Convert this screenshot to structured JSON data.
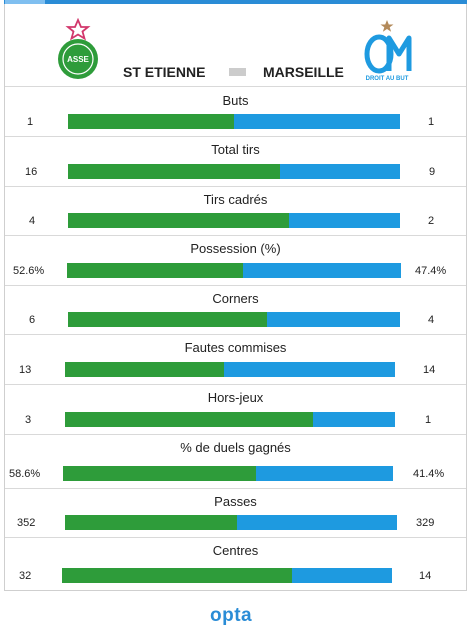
{
  "header": {
    "home_team": "ST ETIENNE",
    "away_team": "MARSEILLE",
    "home_logo_text": "SAINT-ETIENNE ASSE LOIRE",
    "away_logo_text": "DROIT AU BUT"
  },
  "colors": {
    "home": "#2e9c3a",
    "away": "#1e9ae0",
    "accent": "#2a8cd6"
  },
  "stats": [
    {
      "label": "Buts",
      "home": "1",
      "away": "1",
      "home_share": 0.5
    },
    {
      "label": "Total tirs",
      "home": "16",
      "away": "9",
      "home_share": 0.64
    },
    {
      "label": "Tirs cadrés",
      "home": "4",
      "away": "2",
      "home_share": 0.667
    },
    {
      "label": "Possession (%)",
      "home": "52.6%",
      "away": "47.4%",
      "home_share": 0.526
    },
    {
      "label": "Corners",
      "home": "6",
      "away": "4",
      "home_share": 0.6
    },
    {
      "label": "Fautes commises",
      "home": "13",
      "away": "14",
      "home_share": 0.481
    },
    {
      "label": "Hors-jeux",
      "home": "3",
      "away": "1",
      "home_share": 0.75
    },
    {
      "label": "% de duels gagnés",
      "home": "58.6%",
      "away": "41.4%",
      "home_share": 0.586
    },
    {
      "label": "Passes",
      "home": "352",
      "away": "329",
      "home_share": 0.517
    },
    {
      "label": "Centres",
      "home": "32",
      "away": "14",
      "home_share": 0.696
    }
  ],
  "footer": {
    "brand": "opta"
  }
}
